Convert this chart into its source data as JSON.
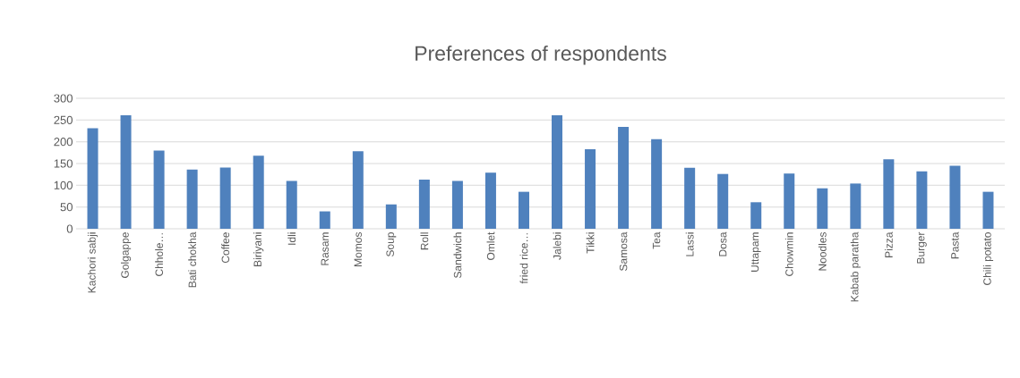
{
  "chart_data": {
    "type": "bar",
    "title": "Preferences of respondents",
    "categories": [
      "Kachori sabji",
      "Golgappe",
      "Chhole…",
      "Bati chokha",
      "Coffee",
      "Biriyani",
      "Idli",
      "Rasam",
      "Momos",
      "Soup",
      "Roll",
      "Sandwich",
      "Omlet",
      "fried rice…",
      "Jalebi",
      "Tikki",
      "Samosa",
      "Tea",
      "Lassi",
      "Dosa",
      "Uttapam",
      "Chowmin",
      "Noodles",
      "Kabab paratha",
      "Pizza",
      "Burger",
      "Pasta",
      "Chili potato"
    ],
    "values": [
      231,
      261,
      180,
      136,
      141,
      168,
      110,
      40,
      178,
      56,
      113,
      110,
      129,
      85,
      261,
      183,
      234,
      206,
      140,
      126,
      61,
      127,
      93,
      104,
      160,
      132,
      145,
      85
    ],
    "color": "#4f81bd",
    "ylim": [
      0,
      300
    ],
    "yticks": [
      0,
      50,
      100,
      150,
      200,
      250,
      300
    ],
    "grid": "y"
  }
}
